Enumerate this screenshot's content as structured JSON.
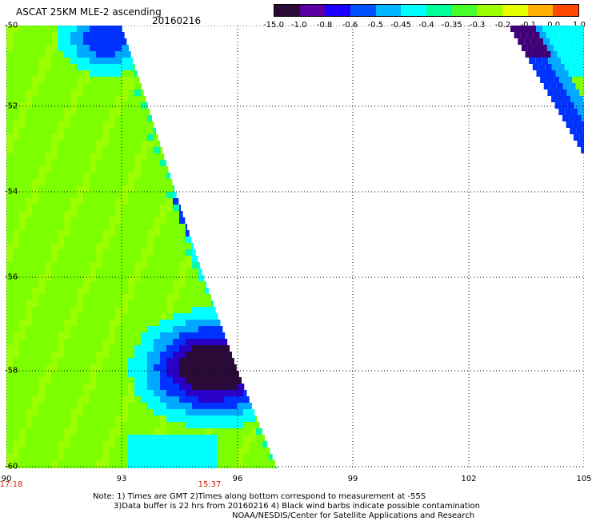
{
  "header": {
    "title": "ASCAT 25KM MLE-2 ascending",
    "date": "20160216"
  },
  "colorbar": {
    "ticks": [
      "-15.0",
      "-1.0",
      "-0.8",
      "-0.6",
      "-0.5",
      "-0.45",
      "-0.4",
      "-0.35",
      "-0.3",
      "-0.2",
      "-0.1",
      "0.0",
      "1.0"
    ],
    "colors": [
      "#2a0a36",
      "#5a00a0",
      "#1c00ff",
      "#0050ff",
      "#00b4ff",
      "#00ffff",
      "#00ff9a",
      "#45ff2a",
      "#9aff00",
      "#e8ff00",
      "#ffb000",
      "#ff4800"
    ]
  },
  "map": {
    "lat_labels": [
      "-50",
      "-52",
      "-54",
      "-56",
      "-58",
      "-60"
    ],
    "lon_labels": [
      "90",
      "93",
      "96",
      "99",
      "102",
      "105"
    ],
    "time_labels": [
      "17:18",
      "15:37"
    ],
    "colors": {
      "green": "#7cff00",
      "light_green": "#9cff00",
      "teal": "#00ffa0",
      "cyan": "#00ffff",
      "sky": "#00a8ff",
      "blue": "#0032ff",
      "indigo": "#2800c8",
      "purple": "#400078",
      "dark": "#2a0a36"
    }
  },
  "notes": [
    "Note: 1) Times are GMT 2)Times along bottom correspond to measurement at -55S",
    "3)Data buffer is 22 hrs from 20160216 4) Black wind barbs indicate possible contamination",
    "NOAA/NESDIS/Center for Satellite Applications and Research"
  ]
}
